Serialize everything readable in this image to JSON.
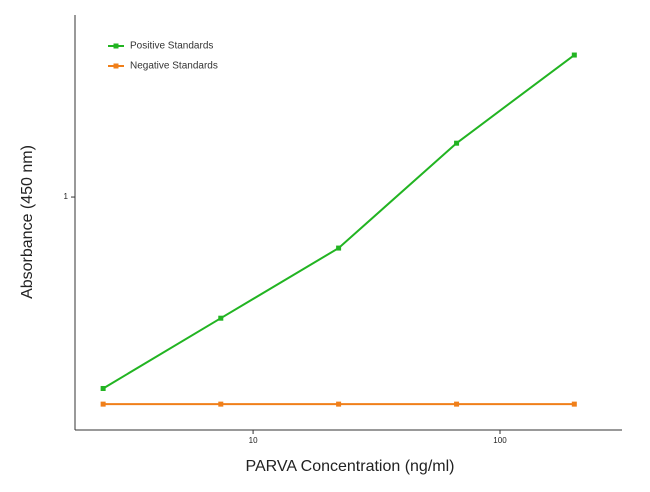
{
  "chart_data": {
    "type": "line",
    "xlabel": "PARVA Concentration (ng/ml)",
    "ylabel": "Absorbance (450 nm)",
    "x": [
      2.47,
      7.4,
      22.2,
      66.7,
      200
    ],
    "series": [
      {
        "name": "Positive Standards",
        "color": "#22b422",
        "values": [
          0.119,
          0.26,
          0.567,
          1.82,
          4.85
        ]
      },
      {
        "name": "Negative Standards",
        "color": "#f07f1a",
        "values": [
          0.1,
          0.1,
          0.1,
          0.1,
          0.1
        ]
      }
    ],
    "xlim": [
      1.9,
      312
    ],
    "ylim": [
      0.075,
      7.57
    ],
    "xticks": [
      10,
      100
    ],
    "yticks": [
      1
    ],
    "xscale": "log",
    "yscale": "log",
    "grid": false,
    "legend": "upper left"
  }
}
